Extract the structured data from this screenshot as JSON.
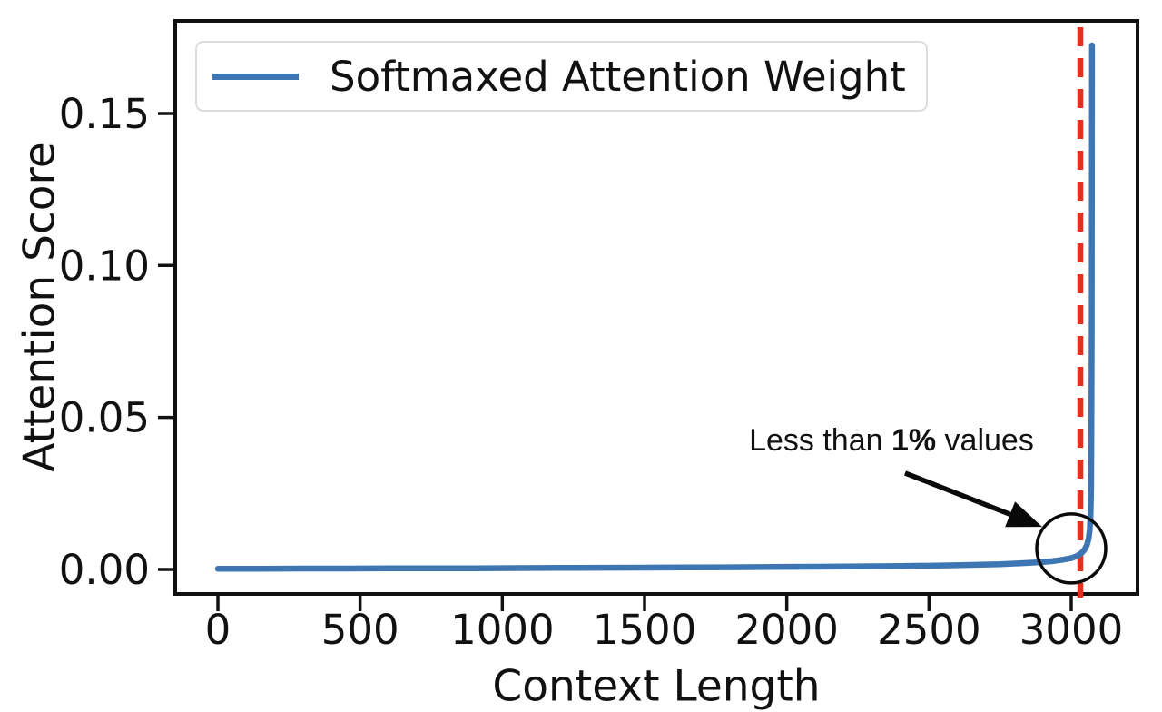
{
  "figure": {
    "background": "#ffffff"
  },
  "colors": {
    "line": "#3e76b3",
    "vline": "#e23120",
    "text": "#111111",
    "legend_border": "#dcdcdc",
    "annotation_text": "#111111",
    "annotation_shapes": "#0a0a0a"
  },
  "chart_data": {
    "type": "line",
    "xlabel": "Context Length",
    "ylabel": "Attention Score",
    "xlim": [
      -150,
      3233
    ],
    "ylim": [
      -0.00807,
      0.18046
    ],
    "grid": false,
    "xticks": {
      "values": [
        0,
        500,
        1000,
        1500,
        2000,
        2500,
        3000
      ],
      "labels": [
        "0",
        "500",
        "1000",
        "1500",
        "2000",
        "2500",
        "3000"
      ]
    },
    "yticks": {
      "values": [
        0,
        0.05,
        0.1,
        0.15
      ],
      "labels": [
        "0.00",
        "0.05",
        "0.10",
        "0.15"
      ]
    },
    "legend": {
      "position": "upper left",
      "entries": [
        {
          "label": "Softmaxed Attention Weight",
          "color": "#3e76b3",
          "style": "solid"
        }
      ]
    },
    "series": [
      {
        "name": "Softmaxed Attention Weight",
        "color": "#3e76b3",
        "width": 6.5,
        "points": [
          [
            0,
            0.0002
          ],
          [
            150,
            0.00025
          ],
          [
            300,
            0.0003
          ],
          [
            450,
            0.0003
          ],
          [
            600,
            0.00035
          ],
          [
            750,
            0.0004
          ],
          [
            900,
            0.0004
          ],
          [
            1050,
            0.00045
          ],
          [
            1200,
            0.0005
          ],
          [
            1350,
            0.00055
          ],
          [
            1500,
            0.0006
          ],
          [
            1650,
            0.00065
          ],
          [
            1800,
            0.0007
          ],
          [
            1950,
            0.0008
          ],
          [
            2100,
            0.0009
          ],
          [
            2250,
            0.001
          ],
          [
            2400,
            0.0011
          ],
          [
            2550,
            0.0013
          ],
          [
            2650,
            0.0015
          ],
          [
            2750,
            0.0017
          ],
          [
            2820,
            0.002
          ],
          [
            2880,
            0.0023
          ],
          [
            2930,
            0.0027
          ],
          [
            2970,
            0.0032
          ],
          [
            3000,
            0.0037
          ],
          [
            3020,
            0.0044
          ],
          [
            3035,
            0.0053
          ],
          [
            3047,
            0.0065
          ],
          [
            3055,
            0.008
          ],
          [
            3061,
            0.01
          ],
          [
            3065,
            0.013
          ],
          [
            3068,
            0.018
          ],
          [
            3070,
            0.027
          ],
          [
            3071,
            0.045
          ],
          [
            3072,
            0.08
          ],
          [
            3073,
            0.1724
          ]
        ]
      }
    ],
    "vline": {
      "x": 3032,
      "color": "#e23120",
      "style": "dashed",
      "width": 6.5
    },
    "annotation": {
      "text": "Less than 1% values",
      "text_prefix": "Less than ",
      "text_bold": "1%",
      "text_suffix": " values",
      "text_at": {
        "x": 2368,
        "y": 0.0427
      },
      "arrow": {
        "from": {
          "x": 2416,
          "y": 0.0317
        },
        "to": {
          "x": 2898,
          "y": 0.014
        }
      },
      "circle": {
        "x": 3000,
        "y": 0.0069,
        "radius_px": 38
      }
    }
  }
}
